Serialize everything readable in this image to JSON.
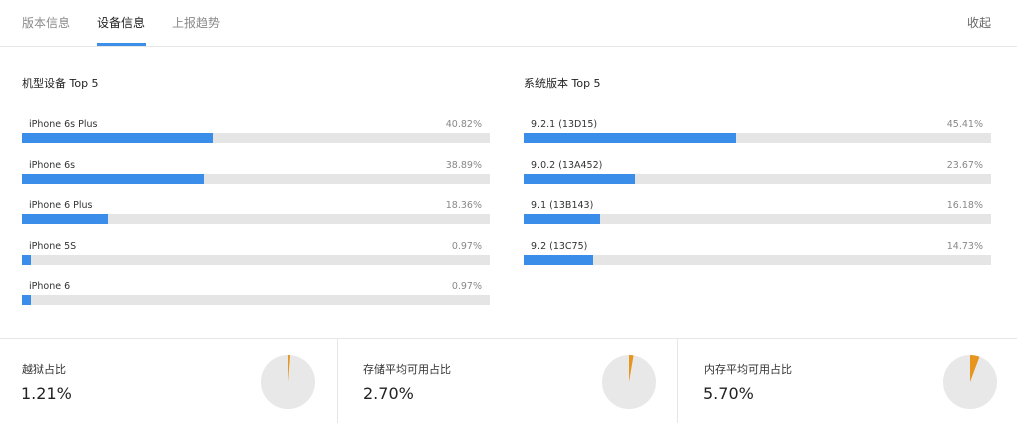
{
  "tabs": [
    {
      "label": "版本信息",
      "active": false
    },
    {
      "label": "设备信息",
      "active": true
    },
    {
      "label": "上报趋势",
      "active": false
    }
  ],
  "collapse_label": "收起",
  "colors": {
    "accent": "#3a8de8",
    "track": "#e5e5e5",
    "pie_slice": "#e6961e",
    "pie_bg": "#e8e8e8"
  },
  "device_model": {
    "title": "机型设备 Top 5",
    "items": [
      {
        "label": "iPhone 6s Plus",
        "pct_text": "40.82%",
        "pct": 40.82
      },
      {
        "label": "iPhone 6s",
        "pct_text": "38.89%",
        "pct": 38.89
      },
      {
        "label": "iPhone 6 Plus",
        "pct_text": "18.36%",
        "pct": 18.36
      },
      {
        "label": "iPhone 5S",
        "pct_text": "0.97%",
        "pct": 0.97
      },
      {
        "label": "iPhone 6",
        "pct_text": "0.97%",
        "pct": 0.97
      }
    ]
  },
  "os_version": {
    "title": "系统版本 Top 5",
    "items": [
      {
        "label": "9.2.1 (13D15)",
        "pct_text": "45.41%",
        "pct": 45.41
      },
      {
        "label": "9.0.2 (13A452)",
        "pct_text": "23.67%",
        "pct": 23.67
      },
      {
        "label": "9.1 (13B143)",
        "pct_text": "16.18%",
        "pct": 16.18
      },
      {
        "label": "9.2 (13C75)",
        "pct_text": "14.73%",
        "pct": 14.73
      }
    ]
  },
  "stats": [
    {
      "label": "越狱占比",
      "value_text": "1.21%",
      "value": 1.21,
      "icon": "jailbreak-pie-icon"
    },
    {
      "label": "存储平均可用占比",
      "value_text": "2.70%",
      "value": 2.7,
      "icon": "storage-pie-icon"
    },
    {
      "label": "内存平均可用占比",
      "value_text": "5.70%",
      "value": 5.7,
      "icon": "memory-pie-icon"
    }
  ]
}
